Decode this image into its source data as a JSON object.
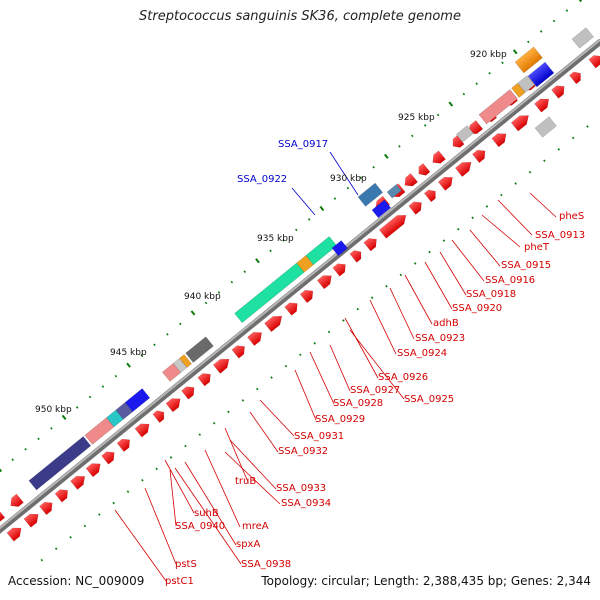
{
  "title": "Streptococcus sanguinis SK36, complete genome",
  "footer": {
    "accession": "Accession: NC_009009",
    "summary": "Topology: circular; Length: 2,388,435 bp; Genes: 2,344"
  },
  "scale_labels": [
    "920 kbp",
    "925 kbp",
    "930 kbp",
    "935 kbp",
    "940 kbp",
    "945 kbp",
    "950 kbp"
  ],
  "gene_labels_blue": [
    "SSA_0917",
    "SSA_0922"
  ],
  "gene_labels_red": [
    "pheS",
    "SSA_0913",
    "pheT",
    "SSA_0915",
    "SSA_0916",
    "SSA_0918",
    "SSA_0920",
    "adhB",
    "SSA_0923",
    "SSA_0924",
    "SSA_0926",
    "SSA_0925",
    "SSA_0927",
    "SSA_0928",
    "SSA_0929",
    "SSA_0931",
    "SSA_0932",
    "truB",
    "SSA_0933",
    "SSA_0934",
    "mreA",
    "suhB",
    "SSA_0940",
    "spxA",
    "SSA_0938",
    "pstS",
    "pstC1"
  ],
  "colors": {
    "backbone": "#8a8a8a",
    "cds": "#f01a1a",
    "highlight_blue": "#1a1aee",
    "label_red": "#d40000",
    "label_blue": "#0000cc",
    "tick_green": "#0a7a0a"
  }
}
